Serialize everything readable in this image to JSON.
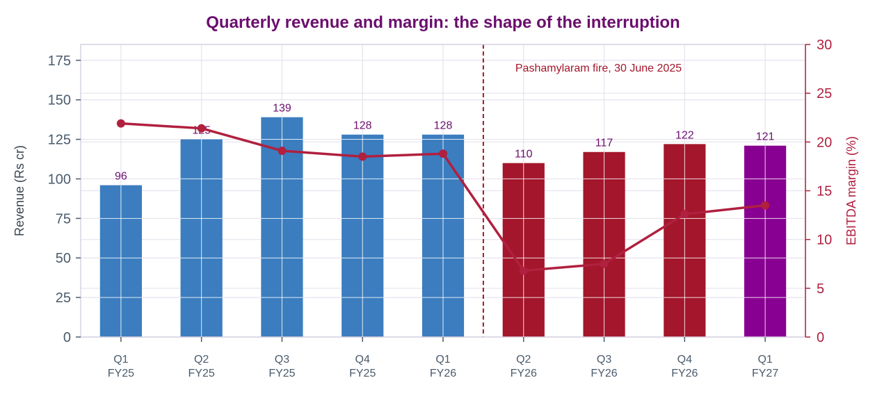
{
  "chart_data": {
    "type": "bar",
    "title": "Quarterly revenue and margin: the shape of the interruption",
    "categories": [
      [
        "Q1",
        "FY25"
      ],
      [
        "Q2",
        "FY25"
      ],
      [
        "Q3",
        "FY25"
      ],
      [
        "Q4",
        "FY25"
      ],
      [
        "Q1",
        "FY26"
      ],
      [
        "Q2",
        "FY26"
      ],
      [
        "Q3",
        "FY26"
      ],
      [
        "Q4",
        "FY26"
      ],
      [
        "Q1",
        "FY27"
      ]
    ],
    "bar_series": {
      "values": [
        96,
        125,
        139,
        128,
        128,
        110,
        117,
        122,
        121
      ],
      "labels": [
        "96",
        "125",
        "139",
        "128",
        "128",
        "110",
        "117",
        "122",
        "121"
      ],
      "groups": [
        "pre",
        "pre",
        "pre",
        "pre",
        "pre",
        "post",
        "post",
        "post",
        "forecast"
      ]
    },
    "line_series": {
      "values": [
        21.9,
        21.4,
        19.1,
        18.5,
        18.8,
        6.8,
        7.5,
        12.6,
        13.5
      ],
      "axis": "right"
    },
    "left_axis": {
      "label": "Revenue (Rs cr)",
      "ylim": [
        0,
        185
      ],
      "ticks": [
        0,
        25,
        50,
        75,
        100,
        125,
        150,
        175
      ]
    },
    "right_axis": {
      "label": "EBITDA margin (%)",
      "ylim": [
        0,
        30
      ],
      "ticks": [
        0,
        5,
        10,
        15,
        20,
        25,
        30
      ]
    },
    "event": {
      "after_index": 4,
      "label": "Pashamylaram fire, 30 June 2025"
    },
    "grid": true,
    "colors": {
      "pre": "#3b7dbf",
      "post": "#a3162b",
      "forecast": "#880091",
      "line": "#b0203f",
      "title": "#6b0e6e",
      "right_axis": "#b0203f",
      "left_axis": "#4a5b6c",
      "grid": "#e6e3ee",
      "frame": "#d8d2e0"
    }
  }
}
